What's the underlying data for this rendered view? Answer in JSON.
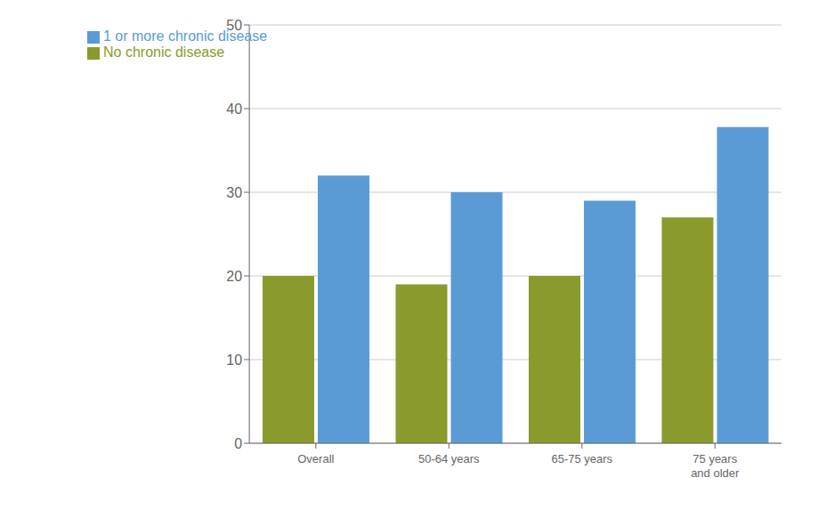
{
  "chart_data": {
    "type": "bar",
    "categories": [
      "Overall",
      "50-64 years",
      "65-75 years",
      "75 years\nand older"
    ],
    "series": [
      {
        "name": "No chronic disease",
        "color": "#8B9A2C",
        "values": [
          20.0,
          19.0,
          20.0,
          27.0
        ]
      },
      {
        "name": "1 or more chronic disease",
        "color": "#5B9BD5",
        "values": [
          32.0,
          30.0,
          29.0,
          37.8
        ]
      }
    ],
    "ylim": [
      0,
      50
    ],
    "yticks": [
      0,
      10,
      20,
      30,
      40,
      50
    ],
    "grid": true,
    "legend": "upper left"
  }
}
